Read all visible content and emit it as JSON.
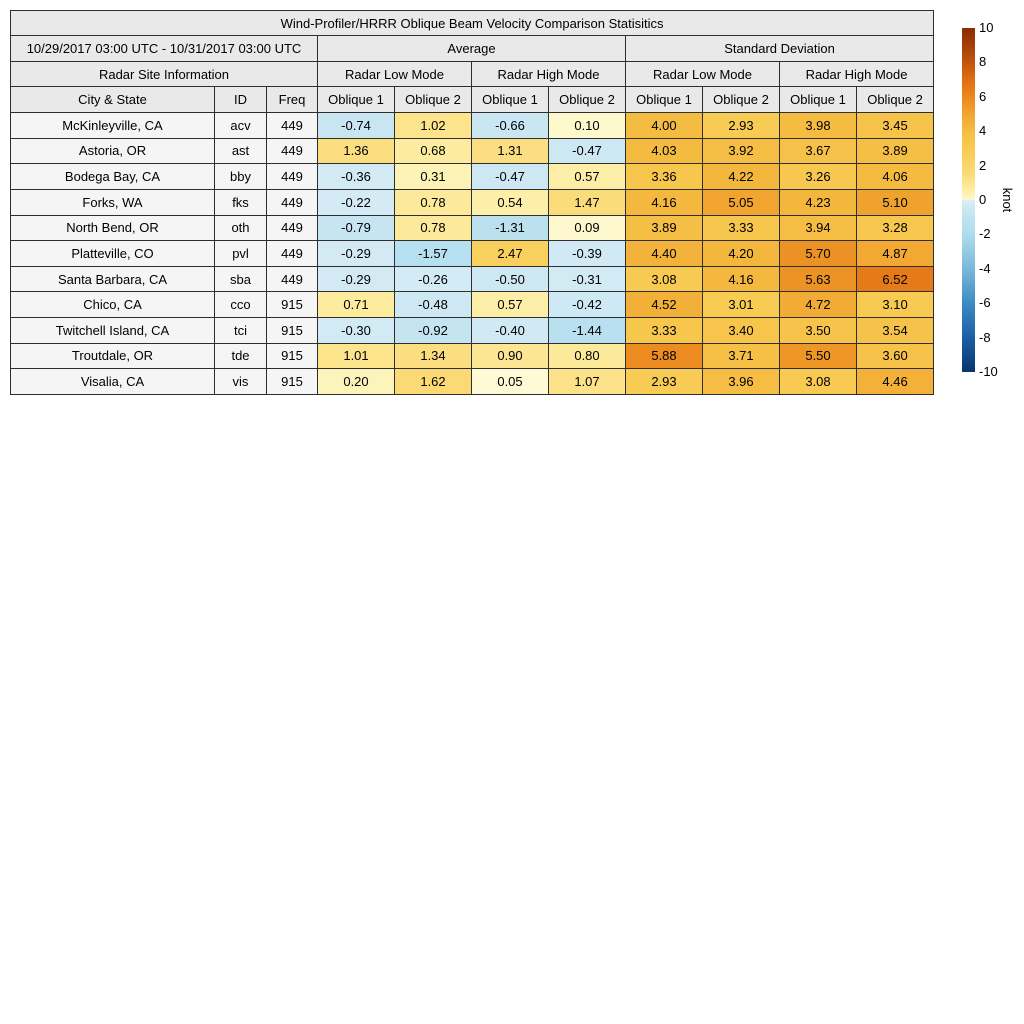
{
  "title": "Wind-Profiler/HRRR Oblique Beam Velocity Comparison Statisitics",
  "table": {
    "date_range": "10/29/2017 03:00 UTC - 10/31/2017 03:00 UTC",
    "group_average": "Average",
    "group_std": "Standard Deviation",
    "site_info": "Radar Site Information",
    "radar_low_mode": "Radar Low Mode",
    "radar_high_mode": "Radar High Mode",
    "col_city": "City & State",
    "col_id": "ID",
    "col_freq": "Freq",
    "col_oblique1": "Oblique 1",
    "col_oblique2": "Oblique 2"
  },
  "colorbar": {
    "label": "knot",
    "min": -10,
    "max": 10,
    "ticks": [
      10,
      8,
      6,
      4,
      2,
      0,
      -2,
      -4,
      -6,
      -8,
      -10
    ],
    "stops": [
      {
        "v": -10,
        "c": "#08356d"
      },
      {
        "v": -8,
        "c": "#1c5ea6"
      },
      {
        "v": -6,
        "c": "#3d8bc3"
      },
      {
        "v": -4,
        "c": "#7ab8da"
      },
      {
        "v": -2,
        "c": "#aedcee"
      },
      {
        "v": -1,
        "c": "#c1e3f0"
      },
      {
        "v": -0.5,
        "c": "#cde8f3"
      },
      {
        "v": -0.05,
        "c": "#d9edf6"
      },
      {
        "v": 0.05,
        "c": "#fefad6"
      },
      {
        "v": 0.2,
        "c": "#fdf4bc"
      },
      {
        "v": 0.5,
        "c": "#fdf0ab"
      },
      {
        "v": 1,
        "c": "#fce48d"
      },
      {
        "v": 1.5,
        "c": "#fbdb79"
      },
      {
        "v": 2,
        "c": "#fad568"
      },
      {
        "v": 3,
        "c": "#f8cb53"
      },
      {
        "v": 4,
        "c": "#f5bc42"
      },
      {
        "v": 5,
        "c": "#f1a530"
      },
      {
        "v": 6,
        "c": "#ea881e"
      },
      {
        "v": 7,
        "c": "#e06d12"
      },
      {
        "v": 8,
        "c": "#c2540e"
      },
      {
        "v": 9,
        "c": "#a43e07"
      },
      {
        "v": 10,
        "c": "#8a2d04"
      }
    ]
  },
  "colors": {
    "page_bg": "#ffffff",
    "header_bg": "#e9e9e9",
    "label_cell_bg": "#f5f5f5",
    "border": "#2e2e2e"
  },
  "chart_data": {
    "type": "heatmap",
    "title": "Wind-Profiler/HRRR Oblique Beam Velocity Comparison Statisitics",
    "period": "10/29/2017 03:00 UTC - 10/31/2017 03:00 UTC",
    "columns": [
      "Average / Radar Low Mode / Oblique 1",
      "Average / Radar Low Mode / Oblique 2",
      "Average / Radar High Mode / Oblique 1",
      "Average / Radar High Mode / Oblique 2",
      "Standard Deviation / Radar Low Mode / Oblique 1",
      "Standard Deviation / Radar Low Mode / Oblique 2",
      "Standard Deviation / Radar High Mode / Oblique 1",
      "Standard Deviation / Radar High Mode / Oblique 2"
    ],
    "rows": [
      {
        "city": "McKinleyville, CA",
        "id": "acv",
        "freq": 449,
        "values": [
          -0.74,
          1.02,
          -0.66,
          0.1,
          4.0,
          2.93,
          3.98,
          3.45
        ]
      },
      {
        "city": "Astoria, OR",
        "id": "ast",
        "freq": 449,
        "values": [
          1.36,
          0.68,
          1.31,
          -0.47,
          4.03,
          3.92,
          3.67,
          3.89
        ]
      },
      {
        "city": "Bodega Bay, CA",
        "id": "bby",
        "freq": 449,
        "values": [
          -0.36,
          0.31,
          -0.47,
          0.57,
          3.36,
          4.22,
          3.26,
          4.06
        ]
      },
      {
        "city": "Forks, WA",
        "id": "fks",
        "freq": 449,
        "values": [
          -0.22,
          0.78,
          0.54,
          1.47,
          4.16,
          5.05,
          4.23,
          5.1
        ]
      },
      {
        "city": "North Bend, OR",
        "id": "oth",
        "freq": 449,
        "values": [
          -0.79,
          0.78,
          -1.31,
          0.09,
          3.89,
          3.33,
          3.94,
          3.28
        ]
      },
      {
        "city": "Platteville, CO",
        "id": "pvl",
        "freq": 449,
        "values": [
          -0.29,
          -1.57,
          2.47,
          -0.39,
          4.4,
          4.2,
          5.7,
          4.87
        ]
      },
      {
        "city": "Santa Barbara, CA",
        "id": "sba",
        "freq": 449,
        "values": [
          -0.29,
          -0.26,
          -0.5,
          -0.31,
          3.08,
          4.16,
          5.63,
          6.52
        ]
      },
      {
        "city": "Chico, CA",
        "id": "cco",
        "freq": 915,
        "values": [
          0.71,
          -0.48,
          0.57,
          -0.42,
          4.52,
          3.01,
          4.72,
          3.1
        ]
      },
      {
        "city": "Twitchell Island, CA",
        "id": "tci",
        "freq": 915,
        "values": [
          -0.3,
          -0.92,
          -0.4,
          -1.44,
          3.33,
          3.4,
          3.5,
          3.54
        ]
      },
      {
        "city": "Troutdale, OR",
        "id": "tde",
        "freq": 915,
        "values": [
          1.01,
          1.34,
          0.9,
          0.8,
          5.88,
          3.71,
          5.5,
          3.6
        ]
      },
      {
        "city": "Visalia, CA",
        "id": "vis",
        "freq": 915,
        "values": [
          0.2,
          1.62,
          0.05,
          1.07,
          2.93,
          3.96,
          3.08,
          4.46
        ]
      }
    ],
    "colorbar": {
      "label": "knot",
      "range": [
        -10,
        10
      ],
      "ticks": [
        10,
        8,
        6,
        4,
        2,
        0,
        -2,
        -4,
        -6,
        -8,
        -10
      ]
    }
  }
}
